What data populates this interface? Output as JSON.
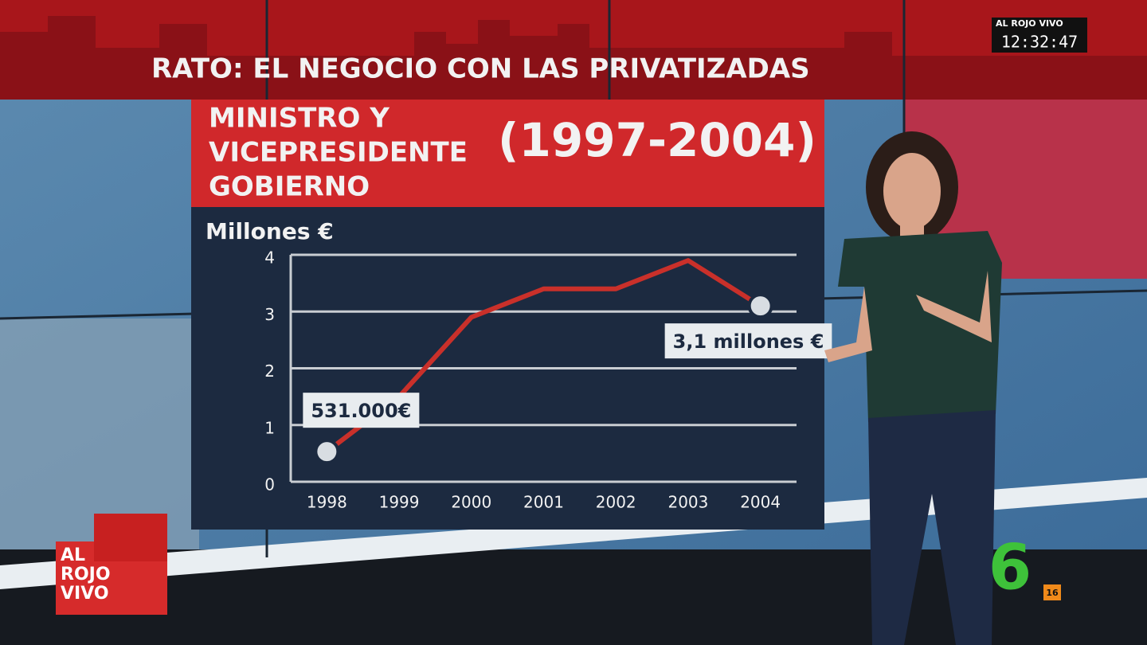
{
  "chart_data": {
    "type": "line",
    "title": "RATO: EL NEGOCIO CON LAS PRIVATIZADAS",
    "subtitle_lines": [
      "MINISTRO Y",
      "VICEPRESIDENTE",
      "GOBIERNO"
    ],
    "period": "(1997-2004)",
    "y_label": "Millones €",
    "categories": [
      "1998",
      "1999",
      "2000",
      "2001",
      "2002",
      "2003",
      "2004"
    ],
    "values": [
      0.531,
      1.5,
      2.9,
      3.4,
      3.4,
      3.9,
      3.1
    ],
    "value_labels": [
      "531.000€",
      null,
      null,
      null,
      null,
      null,
      "3,1 millones €"
    ],
    "color": "#c9302a",
    "ylim": [
      0,
      4
    ],
    "yticks": [
      0,
      1,
      2,
      3,
      4
    ],
    "grid": true
  },
  "overlay": {
    "program_tag": "AL ROJO VIVO",
    "clock": "12:32:47",
    "logo_lines": [
      "AL",
      "ROJO",
      "VIVO"
    ],
    "channel": "6",
    "rating": "16"
  }
}
